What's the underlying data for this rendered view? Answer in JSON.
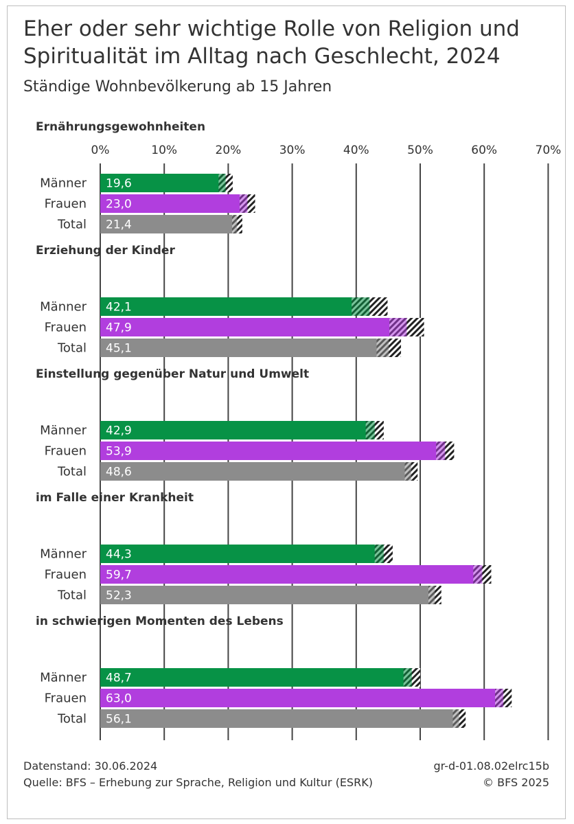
{
  "chart_data": {
    "type": "bar",
    "orientation": "horizontal",
    "title": "Eher oder sehr wichtige Rolle von Religion und Spiritualität im Alltag nach Geschlecht, 2024",
    "subtitle": "Ständige Wohnbevölkerung ab 15 Jahren",
    "xlim": [
      0,
      70
    ],
    "x_ticks": [
      "0%",
      "10%",
      "20%",
      "30%",
      "40%",
      "50%",
      "60%",
      "70%"
    ],
    "categories": [
      "Männer",
      "Frauen",
      "Total"
    ],
    "colors": {
      "Männer": "#079246",
      "Frauen": "#b13ede",
      "Total": "#8c8c8c"
    },
    "confidence_interval_note": "hatched band marks confidence interval",
    "groups": [
      {
        "name": "Ernährungsgewohnheiten",
        "rows": [
          {
            "category": "Männer",
            "value": 19.6,
            "label": "19,6",
            "ci": [
              18.5,
              20.7
            ]
          },
          {
            "category": "Frauen",
            "value": 23.0,
            "label": "23,0",
            "ci": [
              21.8,
              24.2
            ]
          },
          {
            "category": "Total",
            "value": 21.4,
            "label": "21,4",
            "ci": [
              20.6,
              22.2
            ]
          }
        ]
      },
      {
        "name": "Erziehung der Kinder",
        "rows": [
          {
            "category": "Männer",
            "value": 42.1,
            "label": "42,1",
            "ci": [
              39.3,
              44.9
            ]
          },
          {
            "category": "Frauen",
            "value": 47.9,
            "label": "47,9",
            "ci": [
              45.2,
              50.6
            ]
          },
          {
            "category": "Total",
            "value": 45.1,
            "label": "45,1",
            "ci": [
              43.2,
              47.0
            ]
          }
        ]
      },
      {
        "name": "Einstellung gegenüber Natur und Umwelt",
        "rows": [
          {
            "category": "Männer",
            "value": 42.9,
            "label": "42,9",
            "ci": [
              41.5,
              44.3
            ]
          },
          {
            "category": "Frauen",
            "value": 53.9,
            "label": "53,9",
            "ci": [
              52.5,
              55.3
            ]
          },
          {
            "category": "Total",
            "value": 48.6,
            "label": "48,6",
            "ci": [
              47.6,
              49.6
            ]
          }
        ]
      },
      {
        "name": "im Falle einer Krankheit",
        "rows": [
          {
            "category": "Männer",
            "value": 44.3,
            "label": "44,3",
            "ci": [
              42.9,
              45.7
            ]
          },
          {
            "category": "Frauen",
            "value": 59.7,
            "label": "59,7",
            "ci": [
              58.3,
              61.1
            ]
          },
          {
            "category": "Total",
            "value": 52.3,
            "label": "52,3",
            "ci": [
              51.3,
              53.3
            ]
          }
        ]
      },
      {
        "name": "in schwierigen Momenten des Lebens",
        "rows": [
          {
            "category": "Männer",
            "value": 48.7,
            "label": "48,7",
            "ci": [
              47.4,
              50.0
            ]
          },
          {
            "category": "Frauen",
            "value": 63.0,
            "label": "63,0",
            "ci": [
              61.7,
              64.3
            ]
          },
          {
            "category": "Total",
            "value": 56.1,
            "label": "56,1",
            "ci": [
              55.1,
              57.1
            ]
          }
        ]
      }
    ]
  },
  "footer": {
    "datenstand": "Datenstand: 30.06.2024",
    "quelle": "Quelle: BFS – Erhebung zur Sprache, Religion und Kultur (ESRK)",
    "code": "gr-d-01.08.02elrc15b",
    "copyright": "© BFS 2025"
  }
}
